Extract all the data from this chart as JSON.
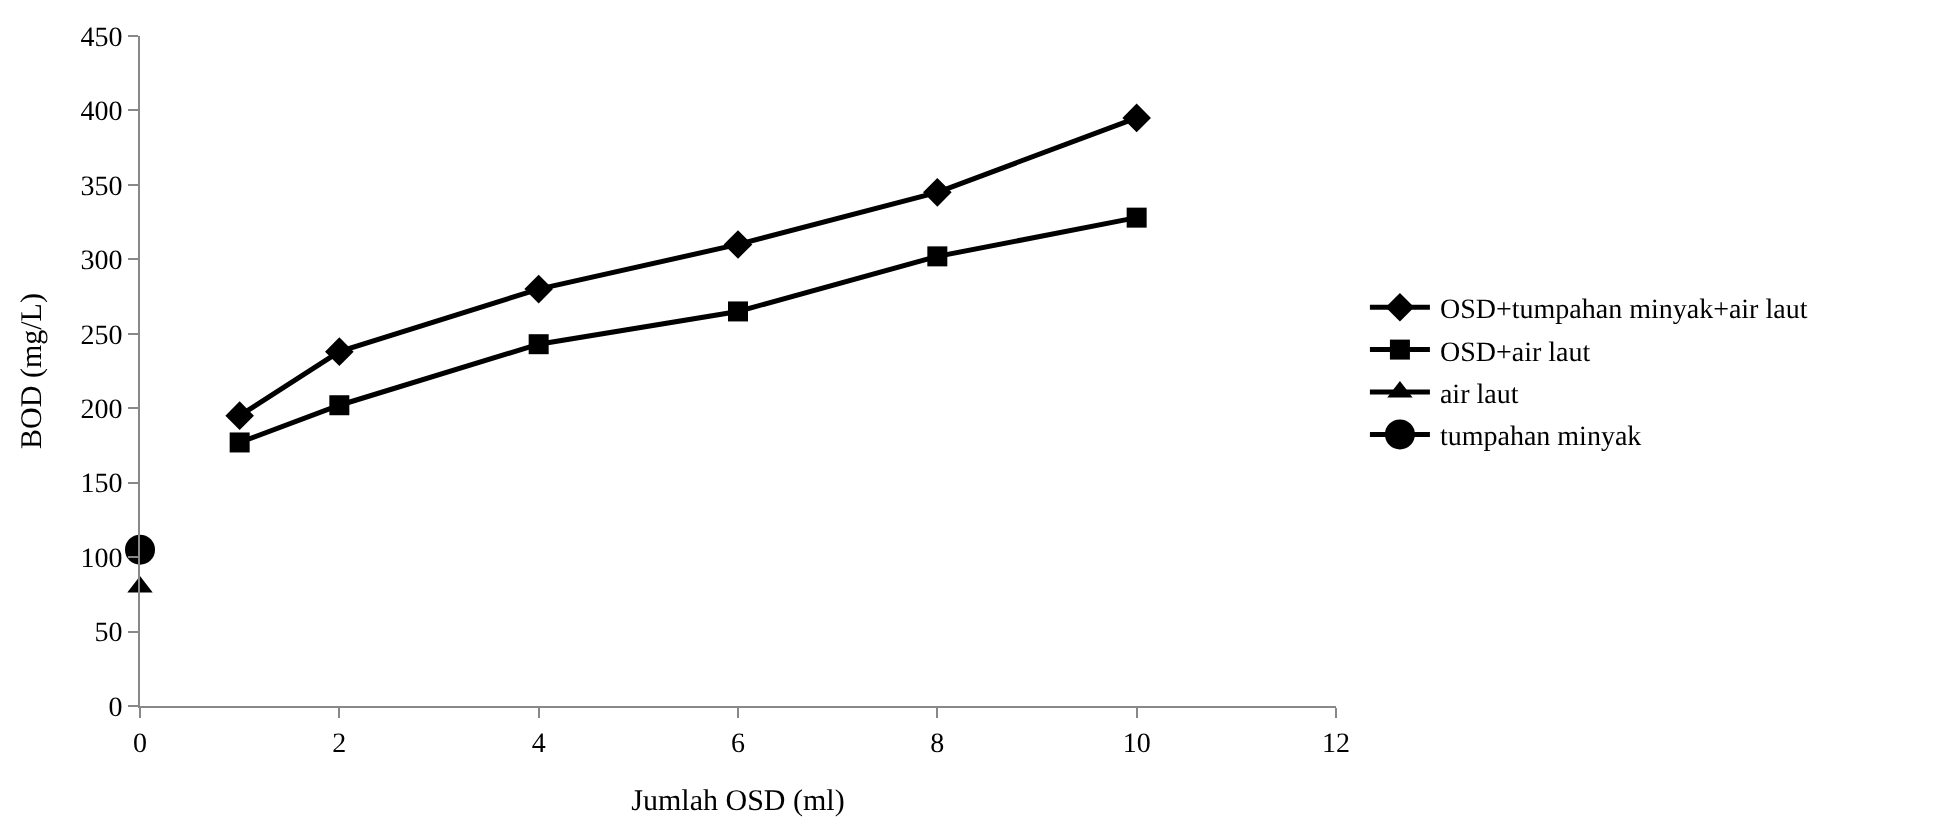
{
  "chart_data": {
    "type": "line",
    "xlabel": "Jumlah OSD (ml)",
    "ylabel": "BOD (mg/L)",
    "xlim": [
      0,
      12
    ],
    "xticks": [
      0,
      2,
      4,
      6,
      8,
      10,
      12
    ],
    "ylim": [
      0,
      450
    ],
    "yticks": [
      0,
      50,
      100,
      150,
      200,
      250,
      300,
      350,
      400,
      450
    ],
    "legend": "right",
    "line_style": "solid",
    "series": [
      {
        "name": "OSD+tumpahan minyak+air laut",
        "color": "#000000",
        "marker": "diamond",
        "x": [
          1,
          2,
          4,
          6,
          8,
          10
        ],
        "values": [
          195,
          238,
          280,
          310,
          345,
          395
        ]
      },
      {
        "name": "OSD+air laut",
        "color": "#000000",
        "marker": "square",
        "x": [
          1,
          2,
          4,
          6,
          8,
          10
        ],
        "values": [
          177,
          202,
          243,
          265,
          302,
          328
        ]
      },
      {
        "name": "air laut",
        "color": "#000000",
        "marker": "triangle",
        "x": [
          0
        ],
        "values": [
          80
        ]
      },
      {
        "name": "tumpahan minyak",
        "color": "#000000",
        "marker": "circle",
        "x": [
          0
        ],
        "values": [
          105
        ]
      }
    ]
  }
}
